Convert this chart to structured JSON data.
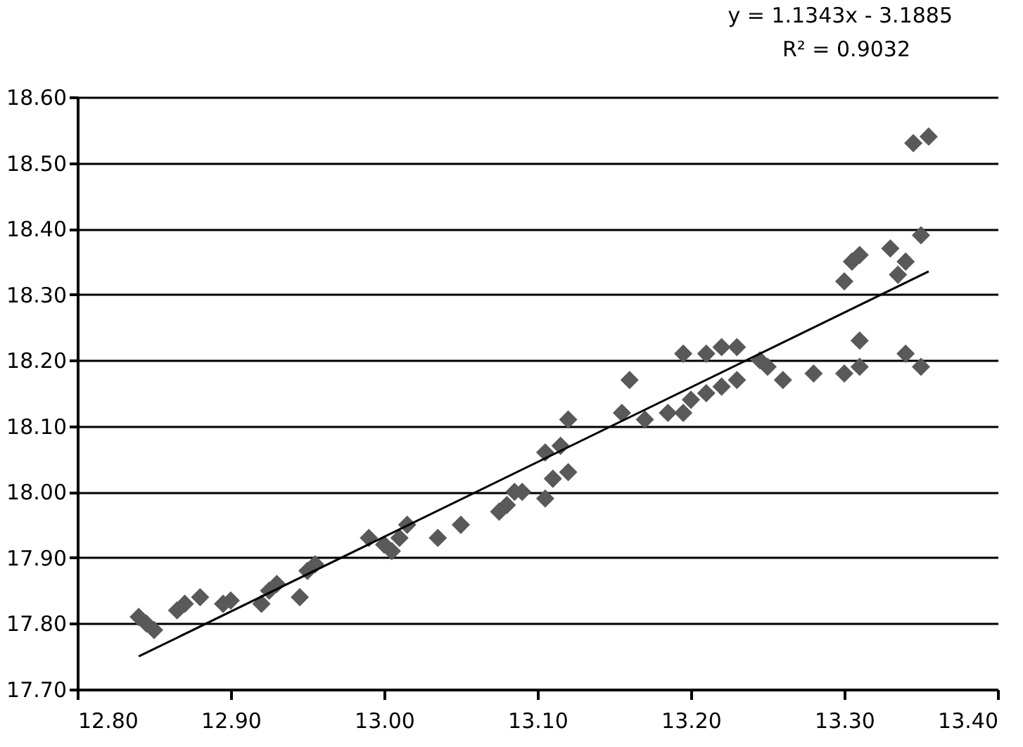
{
  "chart_data": {
    "type": "scatter",
    "annotations": [
      "y = 1.1343x - 3.1885",
      "R² = 0.9032"
    ],
    "xlim": [
      12.8,
      13.4
    ],
    "xticks": [
      {
        "value": 12.8,
        "label": "12.80"
      },
      {
        "value": 12.9,
        "label": "12.90"
      },
      {
        "value": 13.0,
        "label": "13.00"
      },
      {
        "value": 13.1,
        "label": "13.10"
      },
      {
        "value": 13.2,
        "label": "13.20"
      },
      {
        "value": 13.3,
        "label": "13.30"
      },
      {
        "value": 13.4,
        "label": "13.40"
      }
    ],
    "ylim": [
      17.7,
      18.6
    ],
    "yticks": [
      {
        "value": 17.7,
        "label": "17.70"
      },
      {
        "value": 17.8,
        "label": "17.80"
      },
      {
        "value": 17.9,
        "label": "17.90"
      },
      {
        "value": 18.0,
        "label": "18.00"
      },
      {
        "value": 18.1,
        "label": "18.10"
      },
      {
        "value": 18.2,
        "label": "18.20"
      },
      {
        "value": 18.3,
        "label": "18.30"
      },
      {
        "value": 18.4,
        "label": "18.40"
      },
      {
        "value": 18.5,
        "label": "18.50"
      },
      {
        "value": 18.6,
        "label": "18.60"
      }
    ],
    "grid": "y",
    "series": [
      {
        "type": "scatter",
        "marker": "diamond",
        "color": "#595959",
        "x": [
          12.84,
          12.845,
          12.85,
          12.865,
          12.87,
          12.88,
          12.895,
          12.9,
          12.92,
          12.925,
          12.93,
          12.945,
          12.95,
          12.955,
          12.99,
          13.0,
          13.005,
          13.01,
          13.015,
          13.035,
          13.05,
          13.075,
          13.08,
          13.085,
          13.09,
          13.105,
          13.105,
          13.11,
          13.115,
          13.12,
          13.12,
          13.155,
          13.16,
          13.17,
          13.185,
          13.195,
          13.195,
          13.2,
          13.21,
          13.21,
          13.22,
          13.22,
          13.23,
          13.23,
          13.245,
          13.25,
          13.26,
          13.28,
          13.3,
          13.3,
          13.305,
          13.31,
          13.31,
          13.31,
          13.33,
          13.335,
          13.34,
          13.34,
          13.35,
          13.35,
          13.345,
          13.355
        ],
        "values": [
          17.81,
          17.8,
          17.79,
          17.82,
          17.83,
          17.84,
          17.83,
          17.835,
          17.83,
          17.85,
          17.86,
          17.84,
          17.88,
          17.89,
          17.93,
          17.92,
          17.91,
          17.93,
          17.95,
          17.93,
          17.95,
          17.97,
          17.98,
          18.0,
          18.0,
          17.99,
          18.06,
          18.02,
          18.07,
          18.03,
          18.11,
          18.12,
          18.17,
          18.11,
          18.12,
          18.21,
          18.12,
          18.14,
          18.15,
          18.21,
          18.16,
          18.22,
          18.22,
          18.17,
          18.2,
          18.19,
          18.17,
          18.18,
          18.18,
          18.32,
          18.35,
          18.36,
          18.23,
          18.19,
          18.37,
          18.33,
          18.35,
          18.21,
          18.19,
          18.39,
          18.53,
          18.54
        ]
      },
      {
        "type": "line",
        "marker": "none",
        "color": "#000000",
        "x": [
          12.84,
          13.355
        ],
        "values": [
          17.75,
          18.335
        ]
      }
    ]
  }
}
